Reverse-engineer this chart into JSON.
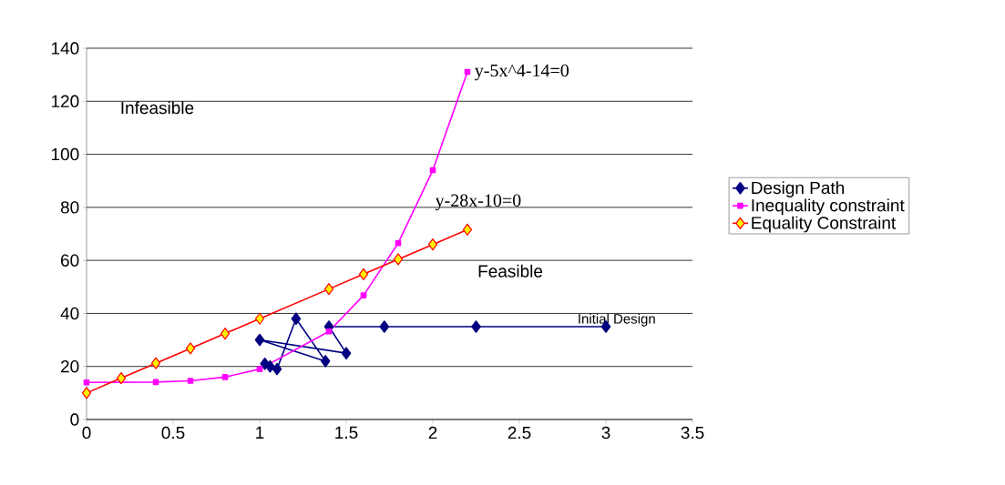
{
  "chart_data": {
    "type": "line",
    "xlim": [
      0,
      3.5
    ],
    "ylim": [
      0,
      140
    ],
    "xticks": [
      0,
      0.5,
      1,
      1.5,
      2,
      2.5,
      3,
      3.5
    ],
    "yticks": [
      0,
      20,
      40,
      60,
      80,
      100,
      120,
      140
    ],
    "grid": "y",
    "legend": "right",
    "line_style": "solid",
    "series": [
      {
        "name": "Design Path",
        "color": "#000080",
        "marker": "diamond",
        "x": [
          3,
          2.25,
          1.72,
          1.4,
          1.5,
          1.0,
          1.38,
          1.21,
          1.1,
          1.06,
          1.03
        ],
        "values": [
          35,
          35,
          35,
          35,
          25,
          30,
          22,
          38,
          19,
          20,
          21
        ]
      },
      {
        "name": "Inequality constraint",
        "color": "#ff00ff",
        "marker": "square",
        "x": [
          0,
          0.2,
          0.4,
          0.6,
          0.8,
          1.0,
          1.4,
          1.6,
          1.8,
          2.0,
          2.2
        ],
        "values": [
          14,
          null,
          14.1,
          14.6,
          16,
          19,
          33.2,
          46.8,
          66.5,
          94,
          131.1
        ]
      },
      {
        "name": "Equality Constraint",
        "color": "#ff0000",
        "marker": "diamond",
        "x": [
          0,
          0.2,
          0.4,
          0.6,
          0.8,
          1.0,
          1.4,
          1.6,
          1.8,
          2.0,
          2.2
        ],
        "values": [
          10,
          15.6,
          21.2,
          26.8,
          32.4,
          38,
          49.2,
          54.8,
          60.4,
          66,
          71.6
        ]
      }
    ],
    "annotations": [
      "Infeasible",
      "Feasible",
      "y-5x^4-14=0",
      "y-28x-10=0",
      "Initial Design"
    ]
  }
}
